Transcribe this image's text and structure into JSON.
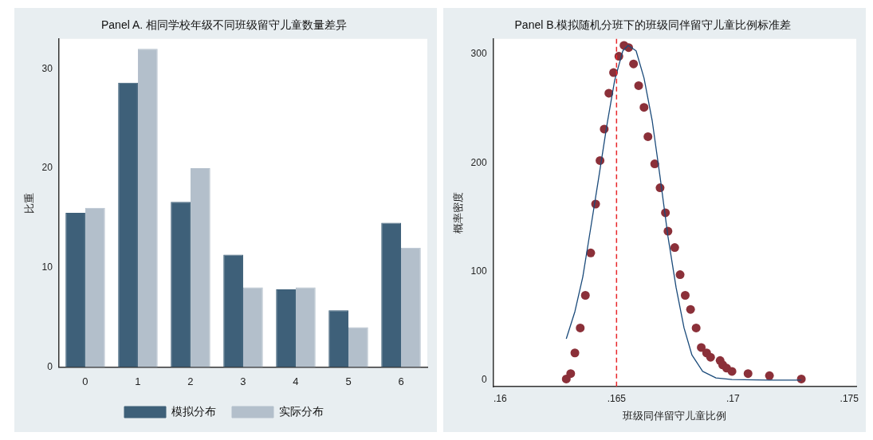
{
  "chart_data": [
    {
      "type": "bar",
      "title": "Panel A. 相同学校年级不同班级留守儿童数量差异",
      "ylabel": "比重",
      "categories": [
        "0",
        "1",
        "2",
        "3",
        "4",
        "5",
        "6"
      ],
      "series": [
        {
          "name": "模拟分布",
          "color": "#3e6079",
          "values": [
            15.5,
            28.6,
            16.6,
            11.3,
            7.8,
            5.7,
            14.5
          ]
        },
        {
          "name": "实际分布",
          "color": "#b3bfcb",
          "values": [
            16,
            32,
            20,
            8,
            8,
            4,
            12
          ]
        }
      ],
      "ylim": [
        0,
        33
      ],
      "yticks": [
        0,
        10,
        20,
        30
      ],
      "grid": false,
      "legend": "bottom"
    },
    {
      "type": "scatter",
      "title": "Panel B.模拟随机分班下的班级同伴留守儿童比例标准差",
      "xlabel": "班级同伴留守儿童比例",
      "ylabel": "概率密度",
      "series": [
        {
          "type": "line",
          "color": "#1a4a7a",
          "marker": "none",
          "x": [
            0.16284,
            0.16321,
            0.16355,
            0.16389,
            0.16424,
            0.16458,
            0.16492,
            0.16527,
            0.1655,
            0.16584,
            0.16618,
            0.16653,
            0.16687,
            0.16721,
            0.16756,
            0.1679,
            0.16824,
            0.1687,
            0.16927,
            0.16996,
            0.17157,
            0.17294
          ],
          "values": [
            38,
            63,
            95,
            140,
            187,
            234,
            276,
            303,
            308,
            303,
            278,
            239,
            187,
            132,
            85,
            48,
            23,
            8,
            2,
            0.5,
            0,
            0
          ]
        },
        {
          "type": "scatter",
          "color": "#8b3039",
          "marker": "circle",
          "x": [
            0.16284,
            0.16303,
            0.16321,
            0.16344,
            0.16366,
            0.16389,
            0.1641,
            0.16429,
            0.16447,
            0.16467,
            0.16487,
            0.1651,
            0.16532,
            0.16552,
            0.16573,
            0.16595,
            0.16618,
            0.16635,
            0.16664,
            0.16687,
            0.1671,
            0.16721,
            0.1675,
            0.16773,
            0.16795,
            0.16818,
            0.16842,
            0.16864,
            0.16887,
            0.16904,
            0.16945,
            0.16956,
            0.16973,
            0.16996,
            0.17065,
            0.17157,
            0.17294
          ],
          "values": [
            1,
            6,
            25,
            48,
            78,
            117,
            162,
            202,
            231,
            264,
            283,
            298,
            308,
            306,
            291,
            271,
            251,
            224,
            199,
            177,
            154,
            137,
            122,
            97,
            78,
            65,
            48,
            30,
            25,
            21,
            18,
            14,
            11,
            8,
            6,
            4,
            1
          ]
        }
      ],
      "xlim": [
        0.1597,
        0.1753
      ],
      "xticks": [
        {
          "value": 0.16,
          "label": ".16"
        },
        {
          "value": 0.165,
          "label": ".165"
        },
        {
          "value": 0.17,
          "label": ".17"
        },
        {
          "value": 0.175,
          "label": ".175"
        }
      ],
      "ylim": [
        -6,
        314
      ],
      "yticks": [
        0,
        100,
        200,
        300
      ],
      "grid": false,
      "legend": false,
      "ref_lines": [
        {
          "axis": "x",
          "value": 0.165,
          "color": "#e8282b",
          "line_style": "dashed"
        }
      ]
    }
  ]
}
